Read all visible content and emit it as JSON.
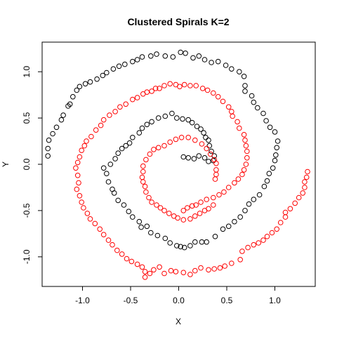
{
  "chart_data": {
    "type": "scatter",
    "title": "Clustered Spirals K=2",
    "xlabel": "X",
    "ylabel": "Y",
    "xlim": [
      -1.42,
      1.42
    ],
    "ylim": [
      -1.32,
      1.32
    ],
    "xticks": [
      -1.0,
      -0.5,
      0.0,
      0.5,
      1.0
    ],
    "yticks": [
      -1.0,
      -0.5,
      0.0,
      0.5,
      1.0
    ],
    "xtick_labels": [
      "-1.0",
      "-0.5",
      "0.0",
      "0.5",
      "1.0"
    ],
    "ytick_labels": [
      "-1.0",
      "-0.5",
      "0.0",
      "0.5",
      "1.0"
    ],
    "grid": false,
    "marker": "open-circle",
    "series": [
      {
        "color": "#000000",
        "points": [
          [
            -1.36,
            0.09
          ],
          [
            -1.36,
            0.17
          ],
          [
            -1.35,
            0.26
          ],
          [
            -1.31,
            0.33
          ],
          [
            -1.27,
            0.4
          ],
          [
            -1.22,
            0.48
          ],
          [
            -1.2,
            0.53
          ],
          [
            -1.15,
            0.63
          ],
          [
            -1.13,
            0.65
          ],
          [
            -1.1,
            0.73
          ],
          [
            -1.06,
            0.8
          ],
          [
            -1.03,
            0.84
          ],
          [
            -0.97,
            0.87
          ],
          [
            -0.92,
            0.89
          ],
          [
            -0.85,
            0.92
          ],
          [
            -0.79,
            0.96
          ],
          [
            -0.75,
            0.99
          ],
          [
            -0.68,
            1.03
          ],
          [
            -0.62,
            1.06
          ],
          [
            -0.56,
            1.08
          ],
          [
            -0.48,
            1.11
          ],
          [
            -0.43,
            1.13
          ],
          [
            -0.38,
            1.16
          ],
          [
            -0.29,
            1.17
          ],
          [
            -0.23,
            1.19
          ],
          [
            -0.14,
            1.17
          ],
          [
            -0.06,
            1.16
          ],
          [
            0.02,
            1.21
          ],
          [
            0.07,
            1.2
          ],
          [
            0.15,
            1.15
          ],
          [
            0.21,
            1.17
          ],
          [
            0.27,
            1.13
          ],
          [
            0.34,
            1.1
          ],
          [
            0.41,
            1.11
          ],
          [
            0.49,
            1.07
          ],
          [
            0.55,
            1.03
          ],
          [
            0.63,
            1.0
          ],
          [
            0.68,
            0.95
          ],
          [
            0.69,
            0.85
          ],
          [
            0.69,
            0.79
          ],
          [
            0.76,
            0.74
          ],
          [
            0.78,
            0.67
          ],
          [
            0.82,
            0.61
          ],
          [
            0.88,
            0.55
          ],
          [
            0.91,
            0.47
          ],
          [
            0.95,
            0.4
          ],
          [
            1.0,
            0.35
          ],
          [
            1.03,
            0.25
          ],
          [
            1.02,
            0.18
          ],
          [
            1.01,
            0.1
          ],
          [
            1.0,
            0.04
          ],
          [
            0.98,
            -0.04
          ],
          [
            0.94,
            -0.1
          ],
          [
            0.92,
            -0.18
          ],
          [
            0.89,
            -0.24
          ],
          [
            0.84,
            -0.33
          ],
          [
            0.78,
            -0.38
          ],
          [
            0.73,
            -0.43
          ],
          [
            0.69,
            -0.5
          ],
          [
            0.64,
            -0.57
          ],
          [
            0.58,
            -0.62
          ],
          [
            0.52,
            -0.67
          ],
          [
            0.46,
            -0.7
          ],
          [
            0.38,
            -0.78
          ],
          [
            0.29,
            -0.84
          ],
          [
            0.24,
            -0.84
          ],
          [
            0.17,
            -0.84
          ],
          [
            0.12,
            -0.88
          ],
          [
            0.06,
            -0.9
          ],
          [
            0.02,
            -0.89
          ],
          [
            -0.02,
            -0.88
          ],
          [
            -0.09,
            -0.85
          ],
          [
            -0.14,
            -0.8
          ],
          [
            -0.22,
            -0.77
          ],
          [
            -0.29,
            -0.74
          ],
          [
            -0.33,
            -0.67
          ],
          [
            -0.39,
            -0.68
          ],
          [
            -0.41,
            -0.62
          ],
          [
            -0.48,
            -0.57
          ],
          [
            -0.52,
            -0.51
          ],
          [
            -0.57,
            -0.44
          ],
          [
            -0.63,
            -0.39
          ],
          [
            -0.67,
            -0.31
          ],
          [
            -0.69,
            -0.27
          ],
          [
            -0.73,
            -0.19
          ],
          [
            -0.75,
            -0.1
          ],
          [
            -0.78,
            -0.04
          ],
          [
            -0.71,
            0.0
          ],
          [
            -0.66,
            0.06
          ],
          [
            -0.63,
            0.12
          ],
          [
            -0.59,
            0.17
          ],
          [
            -0.55,
            0.2
          ],
          [
            -0.51,
            0.23
          ],
          [
            -0.48,
            0.29
          ],
          [
            -0.41,
            0.34
          ],
          [
            -0.38,
            0.39
          ],
          [
            -0.33,
            0.43
          ],
          [
            -0.28,
            0.46
          ],
          [
            -0.21,
            0.5
          ],
          [
            -0.14,
            0.52
          ],
          [
            -0.07,
            0.55
          ],
          [
            -0.02,
            0.5
          ],
          [
            0.04,
            0.49
          ],
          [
            0.1,
            0.48
          ],
          [
            0.14,
            0.45
          ],
          [
            0.19,
            0.41
          ],
          [
            0.23,
            0.38
          ],
          [
            0.26,
            0.34
          ],
          [
            0.28,
            0.29
          ],
          [
            0.31,
            0.26
          ],
          [
            0.32,
            0.2
          ],
          [
            0.34,
            0.14
          ],
          [
            0.37,
            0.09
          ],
          [
            0.36,
            0.04
          ],
          [
            0.31,
            0.03
          ],
          [
            0.27,
            0.07
          ],
          [
            0.21,
            0.09
          ],
          [
            0.16,
            0.06
          ],
          [
            0.1,
            0.07
          ],
          [
            0.05,
            0.08
          ]
        ]
      },
      {
        "color": "#ff0000",
        "points": [
          [
            -0.35,
            -1.22
          ],
          [
            -0.3,
            -1.18
          ],
          [
            -0.26,
            -1.14
          ],
          [
            -0.2,
            -1.11
          ],
          [
            -0.15,
            -1.18
          ],
          [
            -0.08,
            -1.15
          ],
          [
            -0.03,
            -1.16
          ],
          [
            0.05,
            -1.17
          ],
          [
            0.12,
            -1.19
          ],
          [
            0.17,
            -1.15
          ],
          [
            0.23,
            -1.12
          ],
          [
            0.31,
            -1.14
          ],
          [
            0.37,
            -1.13
          ],
          [
            0.43,
            -1.12
          ],
          [
            0.48,
            -1.1
          ],
          [
            0.55,
            -1.07
          ],
          [
            0.64,
            -1.03
          ],
          [
            0.66,
            -0.94
          ],
          [
            0.72,
            -0.9
          ],
          [
            0.78,
            -0.87
          ],
          [
            0.83,
            -0.85
          ],
          [
            0.88,
            -0.82
          ],
          [
            0.92,
            -0.78
          ],
          [
            0.97,
            -0.74
          ],
          [
            1.02,
            -0.7
          ],
          [
            1.06,
            -0.63
          ],
          [
            1.11,
            -0.57
          ],
          [
            1.11,
            -0.52
          ],
          [
            1.16,
            -0.48
          ],
          [
            1.21,
            -0.42
          ],
          [
            1.25,
            -0.36
          ],
          [
            1.29,
            -0.31
          ],
          [
            1.31,
            -0.25
          ],
          [
            1.31,
            -0.19
          ],
          [
            1.33,
            -0.14
          ],
          [
            1.34,
            -0.08
          ],
          [
            0.05,
            -0.5
          ],
          [
            0.09,
            -0.47
          ],
          [
            0.14,
            -0.45
          ],
          [
            0.18,
            -0.44
          ],
          [
            0.23,
            -0.41
          ],
          [
            0.29,
            -0.38
          ],
          [
            0.36,
            -0.36
          ],
          [
            0.42,
            -0.33
          ],
          [
            0.47,
            -0.3
          ],
          [
            0.52,
            -0.25
          ],
          [
            0.58,
            -0.2
          ],
          [
            0.62,
            -0.16
          ],
          [
            0.66,
            -0.11
          ],
          [
            0.68,
            -0.06
          ],
          [
            0.7,
            0.0
          ],
          [
            0.71,
            0.07
          ],
          [
            0.71,
            0.14
          ],
          [
            0.7,
            0.2
          ],
          [
            0.69,
            0.26
          ],
          [
            0.68,
            0.32
          ],
          [
            0.63,
            0.39
          ],
          [
            0.61,
            0.46
          ],
          [
            0.56,
            0.52
          ],
          [
            0.55,
            0.57
          ],
          [
            0.52,
            0.62
          ],
          [
            0.46,
            0.68
          ],
          [
            0.41,
            0.73
          ],
          [
            0.36,
            0.77
          ],
          [
            0.3,
            0.8
          ],
          [
            0.25,
            0.82
          ],
          [
            0.18,
            0.85
          ],
          [
            0.12,
            0.85
          ],
          [
            0.06,
            0.86
          ],
          [
            0.01,
            0.84
          ],
          [
            -0.03,
            0.86
          ],
          [
            -0.09,
            0.87
          ],
          [
            -0.15,
            0.85
          ],
          [
            -0.2,
            0.82
          ],
          [
            -0.24,
            0.82
          ],
          [
            -0.28,
            0.79
          ],
          [
            -0.33,
            0.78
          ],
          [
            -0.37,
            0.76
          ],
          [
            -0.43,
            0.72
          ],
          [
            -0.48,
            0.7
          ],
          [
            -0.55,
            0.65
          ],
          [
            -0.61,
            0.62
          ],
          [
            -0.66,
            0.57
          ],
          [
            -0.72,
            0.53
          ],
          [
            -0.78,
            0.48
          ],
          [
            -0.81,
            0.42
          ],
          [
            -0.86,
            0.37
          ],
          [
            -0.91,
            0.3
          ],
          [
            -0.96,
            0.25
          ],
          [
            -0.98,
            0.2
          ],
          [
            -1.01,
            0.15
          ],
          [
            -1.03,
            0.08
          ],
          [
            -1.05,
            0.02
          ],
          [
            -1.07,
            -0.04
          ],
          [
            -1.05,
            -0.12
          ],
          [
            -1.04,
            -0.2
          ],
          [
            -1.06,
            -0.27
          ],
          [
            -1.03,
            -0.34
          ],
          [
            -1.01,
            -0.41
          ],
          [
            -0.99,
            -0.47
          ],
          [
            -0.95,
            -0.53
          ],
          [
            -0.92,
            -0.59
          ],
          [
            -0.87,
            -0.64
          ],
          [
            -0.82,
            -0.7
          ],
          [
            -0.78,
            -0.76
          ],
          [
            -0.73,
            -0.82
          ],
          [
            -0.69,
            -0.87
          ],
          [
            -0.64,
            -0.93
          ],
          [
            -0.59,
            -0.97
          ],
          [
            -0.54,
            -1.02
          ],
          [
            -0.49,
            -1.05
          ],
          [
            -0.43,
            -1.08
          ],
          [
            -0.38,
            -1.11
          ],
          [
            -0.35,
            -1.16
          ],
          [
            0.36,
            -0.44
          ],
          [
            0.31,
            -0.48
          ],
          [
            0.27,
            -0.5
          ],
          [
            0.22,
            -0.53
          ],
          [
            0.17,
            -0.56
          ],
          [
            0.12,
            -0.59
          ],
          [
            0.05,
            -0.6
          ],
          [
            -0.01,
            -0.58
          ],
          [
            -0.05,
            -0.56
          ],
          [
            -0.1,
            -0.53
          ],
          [
            -0.15,
            -0.5
          ],
          [
            -0.19,
            -0.47
          ],
          [
            -0.23,
            -0.44
          ],
          [
            -0.28,
            -0.41
          ],
          [
            -0.31,
            -0.36
          ],
          [
            -0.34,
            -0.3
          ],
          [
            -0.35,
            -0.24
          ],
          [
            -0.37,
            -0.19
          ],
          [
            -0.38,
            -0.14
          ],
          [
            -0.37,
            -0.08
          ],
          [
            -0.37,
            -0.02
          ],
          [
            -0.34,
            0.05
          ],
          [
            -0.3,
            0.11
          ],
          [
            -0.26,
            0.16
          ],
          [
            -0.21,
            0.18
          ],
          [
            -0.15,
            0.2
          ],
          [
            -0.09,
            0.24
          ],
          [
            -0.03,
            0.27
          ],
          [
            0.03,
            0.29
          ],
          [
            0.1,
            0.29
          ],
          [
            0.17,
            0.26
          ],
          [
            0.24,
            0.22
          ],
          [
            0.29,
            0.17
          ],
          [
            0.33,
            0.11
          ],
          [
            0.37,
            0.05
          ],
          [
            0.39,
            0.01
          ],
          [
            0.39,
            -0.06
          ],
          [
            0.39,
            -0.11
          ],
          [
            0.38,
            -0.16
          ]
        ]
      }
    ]
  }
}
